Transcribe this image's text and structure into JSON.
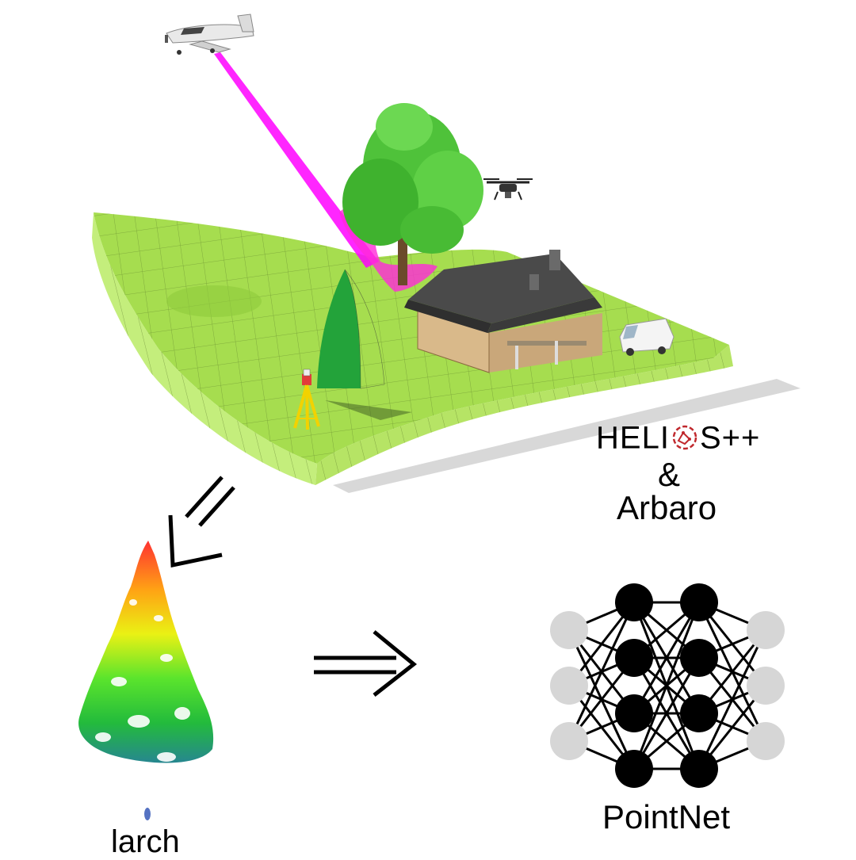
{
  "labels": {
    "helios_pre": "HELI",
    "helios_post": "S++",
    "amp": "&",
    "arbaro": "Arbaro",
    "species": "larch",
    "network": "PointNet"
  },
  "colors": {
    "terrain_top": "#a6dd4f",
    "terrain_side": "#c4ee7c",
    "terrain_grid": "#4e6b22",
    "laser": "#ff00ff",
    "tree_green": "#4fc23a",
    "roof": "#4a4a4a",
    "wall": "#d9b98a",
    "helios_red": "#c0282d",
    "node_dark": "#000000",
    "node_light": "#d6d6d6"
  },
  "icons": [
    "airplane-icon",
    "drone-icon",
    "tripod-scanner-icon",
    "van-icon",
    "house-icon",
    "helios-logo-icon"
  ]
}
